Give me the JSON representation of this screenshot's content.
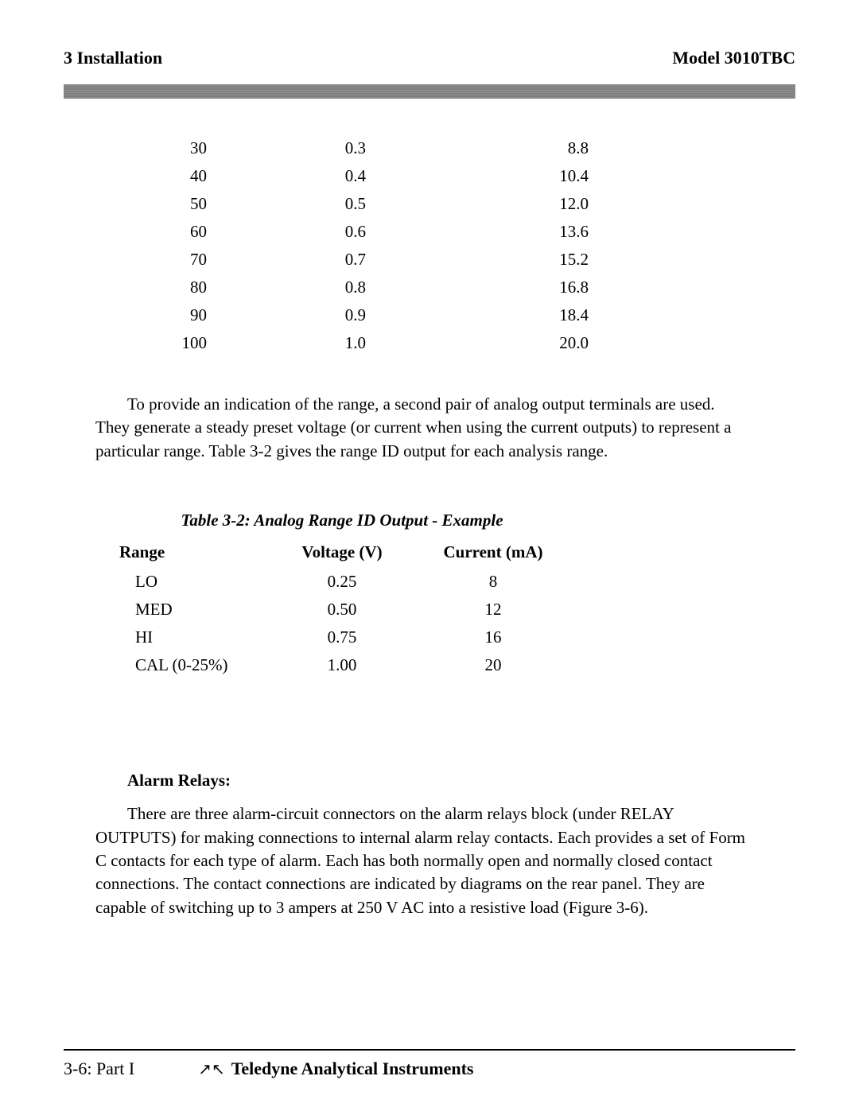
{
  "header": {
    "left": "3  Installation",
    "right": "Model 3010TBC"
  },
  "table1": {
    "rows": [
      {
        "c1": "30",
        "c2": "0.3",
        "c3": "8.8"
      },
      {
        "c1": "40",
        "c2": "0.4",
        "c3": "10.4"
      },
      {
        "c1": "50",
        "c2": "0.5",
        "c3": "12.0"
      },
      {
        "c1": "60",
        "c2": "0.6",
        "c3": "13.6"
      },
      {
        "c1": "70",
        "c2": "0.7",
        "c3": "15.2"
      },
      {
        "c1": "80",
        "c2": "0.8",
        "c3": "16.8"
      },
      {
        "c1": "90",
        "c2": "0.9",
        "c3": "18.4"
      },
      {
        "c1": "100",
        "c2": "1.0",
        "c3": "20.0"
      }
    ]
  },
  "paragraph1": "To provide an indication of the range, a second pair of analog output terminals are used. They generate a steady preset voltage (or current when using the current outputs) to represent a particular range. Table 3-2 gives the range ID output for each analysis range.",
  "table2": {
    "caption": "Table 3-2: Analog Range ID Output - Example",
    "headers": {
      "c1": "Range",
      "c2": "Voltage (V)",
      "c3": "Current (mA)"
    },
    "rows": [
      {
        "c1": "LO",
        "c2": "0.25",
        "c3": "8"
      },
      {
        "c1": "MED",
        "c2": "0.50",
        "c3": "12"
      },
      {
        "c1": "HI",
        "c2": "0.75",
        "c3": "16"
      },
      {
        "c1": "CAL (0-25%)",
        "c2": "1.00",
        "c3": "20"
      }
    ]
  },
  "section2": {
    "heading": "Alarm Relays:",
    "paragraph": "There are three alarm-circuit connectors on the alarm relays block (under RELAY OUTPUTS) for making connections to internal alarm relay contacts. Each provides a set of Form C contacts for each type of alarm. Each has both normally open and normally closed contact connections. The contact connections are indicated by diagrams on the rear panel. They are capable of switching up to 3 ampers at 250 V AC into a resistive load (Figure 3-6)."
  },
  "footer": {
    "left": "3-6:  Part I",
    "logo": "↗↖",
    "company": "Teledyne Analytical Instruments"
  }
}
